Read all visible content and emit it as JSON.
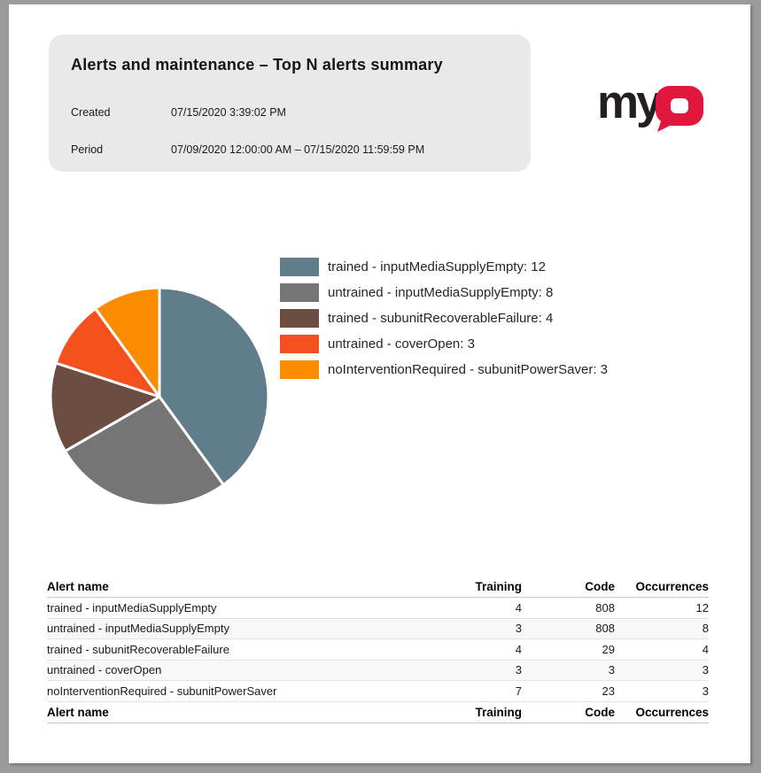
{
  "header": {
    "title": "Alerts and maintenance – Top N alerts summary",
    "created_label": "Created",
    "created_value": "07/15/2020 3:39:02 PM",
    "period_label": "Period",
    "period_value": "07/09/2020 12:00:00 AM – 07/15/2020 11:59:59 PM"
  },
  "logo": {
    "text_my": "my",
    "black": "#231F20",
    "red": "#E2173D"
  },
  "chart_data": {
    "type": "pie",
    "labels": [
      "trained - inputMediaSupplyEmpty",
      "untrained - inputMediaSupplyEmpty",
      "trained - subunitRecoverableFailure",
      "untrained - coverOpen",
      "noInterventionRequired - subunitPowerSaver"
    ],
    "values": [
      12,
      8,
      4,
      3,
      3
    ],
    "colors": [
      "#607D8B",
      "#757575",
      "#6D4C41",
      "#F4511E",
      "#FB8C00"
    ],
    "start_angle_deg": -90,
    "direction": "clockwise",
    "slice_stroke": "#FFFFFF",
    "legend_position": "right",
    "legend_separator": ": "
  },
  "table": {
    "headers": [
      "Alert name",
      "Training",
      "Code",
      "Occurrences"
    ],
    "rows": [
      [
        "trained - inputMediaSupplyEmpty",
        "4",
        "808",
        "12"
      ],
      [
        "untrained - inputMediaSupplyEmpty",
        "3",
        "808",
        "8"
      ],
      [
        "trained - subunitRecoverableFailure",
        "4",
        "29",
        "4"
      ],
      [
        "untrained - coverOpen",
        "3",
        "3",
        "3"
      ],
      [
        "noInterventionRequired - subunitPowerSaver",
        "7",
        "23",
        "3"
      ]
    ],
    "footer_headers": [
      "Alert name",
      "Training",
      "Code",
      "Occurrences"
    ]
  }
}
